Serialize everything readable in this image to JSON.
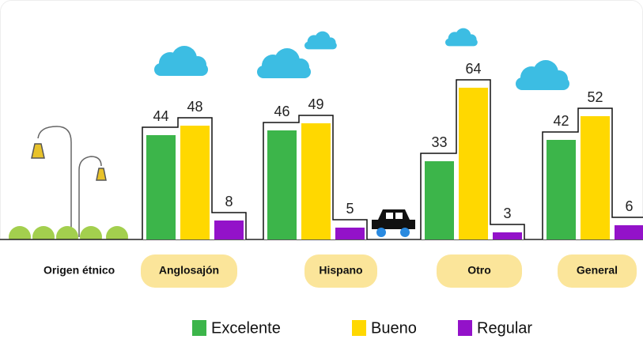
{
  "chart_data": {
    "type": "bar",
    "x_label": "Origen étnico",
    "categories": [
      "Anglosajón",
      "Hispano",
      "Otro",
      "General"
    ],
    "series": [
      {
        "name": "Excelente",
        "color": "#3cb54a",
        "values": [
          44,
          46,
          33,
          42
        ]
      },
      {
        "name": "Bueno",
        "color": "#ffd800",
        "values": [
          48,
          49,
          64,
          52
        ]
      },
      {
        "name": "Regular",
        "color": "#9312c9",
        "values": [
          8,
          5,
          3,
          6
        ]
      }
    ]
  }
}
